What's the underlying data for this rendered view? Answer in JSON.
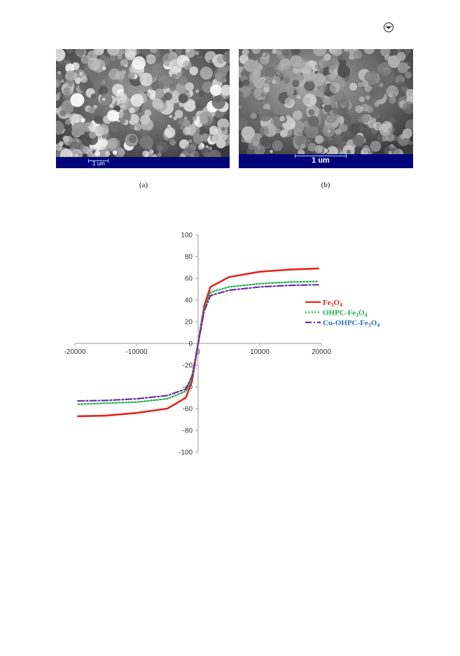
{
  "figure_a": {
    "scale_bar_label": "1 um",
    "caption": "(a)"
  },
  "figure_b": {
    "scale_bar_label": "1 um",
    "caption": "(b)"
  },
  "corner_icon": "circled-arrow-icon",
  "chart_data": {
    "type": "line",
    "title": "",
    "xlabel": "",
    "ylabel": "",
    "xlim": [
      -20000,
      20000
    ],
    "ylim": [
      -100,
      100
    ],
    "x_ticks": [
      -20000,
      -10000,
      0,
      10000,
      20000
    ],
    "y_ticks": [
      100,
      80,
      60,
      40,
      20,
      0,
      -20,
      -40,
      -60,
      -80,
      -100
    ],
    "x_tick_labels": [
      "-20000",
      "-10000",
      "0",
      "10000",
      "20000"
    ],
    "y_tick_labels": [
      "100",
      "80",
      "60",
      "40",
      "20",
      "0",
      "-20",
      "-40",
      "-60",
      "-80",
      "-100"
    ],
    "grid": false,
    "legend_position": "right",
    "series": [
      {
        "name": "Fe3O4",
        "color": "#e8231e",
        "style": "solid",
        "x": [
          -19500,
          -15000,
          -10000,
          -5000,
          -2000,
          -1000,
          0,
          1000,
          2000,
          5000,
          10000,
          15000,
          19500
        ],
        "y": [
          -67,
          -66.5,
          -64,
          -60,
          -50,
          -35,
          0,
          35,
          52,
          61,
          66,
          68,
          69
        ]
      },
      {
        "name": "OHPC-Fe3O4",
        "color": "#1db34a",
        "style": "dotted",
        "x": [
          -19500,
          -15000,
          -10000,
          -5000,
          -2000,
          -1000,
          0,
          1000,
          2000,
          5000,
          10000,
          15000,
          19500
        ],
        "y": [
          -56,
          -55,
          -54,
          -51,
          -44,
          -32,
          0,
          32,
          47,
          52,
          55,
          56.5,
          57
        ]
      },
      {
        "name": "Cu-OHPC-Fe3O4",
        "color": "#6a2fa8",
        "style": "dashdot",
        "x": [
          -19500,
          -15000,
          -10000,
          -5000,
          -2000,
          -1000,
          0,
          1000,
          2000,
          5000,
          10000,
          15000,
          19500
        ],
        "y": [
          -53,
          -52.5,
          -51,
          -48,
          -42,
          -30,
          0,
          30,
          44,
          49,
          52,
          53.5,
          54
        ]
      }
    ],
    "legend": [
      {
        "text_main": "Fe",
        "sub1": "3",
        "mid": "O",
        "sub2": "4",
        "color": "#e8231e",
        "text_color": "#e8231e",
        "style": "solid"
      },
      {
        "text_main": "OHPC-Fe",
        "sub1": "3",
        "mid": "O",
        "sub2": "4",
        "color": "#1db34a",
        "text_color": "#1db34a",
        "style": "dotted"
      },
      {
        "text_main": "Cu-OHPC-Fe",
        "sub1": "3",
        "mid": "O",
        "sub2": "4",
        "color": "#6a2fa8",
        "text_color": "#2f6fc4",
        "style": "dashdot"
      }
    ]
  }
}
